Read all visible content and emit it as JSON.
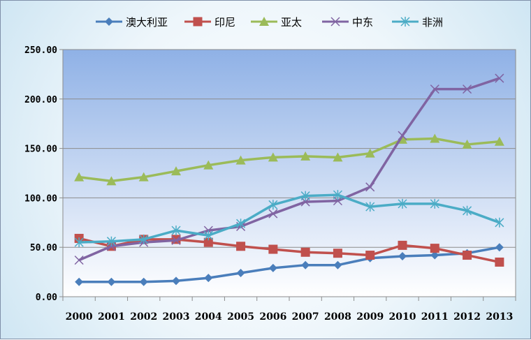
{
  "chart_data": {
    "type": "line",
    "title": "",
    "xlabel": "",
    "ylabel": "",
    "categories": [
      "2000",
      "2001",
      "2002",
      "2003",
      "2004",
      "2005",
      "2006",
      "2007",
      "2008",
      "2009",
      "2010",
      "2011",
      "2012",
      "2013"
    ],
    "ylim": [
      0,
      250
    ],
    "yticks": [
      "0.00",
      "50.00",
      "100.00",
      "150.00",
      "200.00",
      "250.00"
    ],
    "grid": true,
    "legend": "top",
    "series": [
      {
        "name": "澳大利亚",
        "color": "#4a7ebb",
        "marker": "diamond",
        "values": [
          15,
          15,
          15,
          16,
          19,
          24,
          29,
          32,
          32,
          39,
          41,
          42,
          44,
          50
        ]
      },
      {
        "name": "印尼",
        "color": "#c0504d",
        "marker": "square",
        "values": [
          59,
          51,
          58,
          58,
          55,
          51,
          48,
          45,
          44,
          42,
          52,
          49,
          42,
          35
        ]
      },
      {
        "name": "亚太",
        "color": "#9bbb59",
        "marker": "triangle",
        "values": [
          121,
          117,
          121,
          127,
          133,
          138,
          141,
          142,
          141,
          145,
          159,
          160,
          154,
          157
        ]
      },
      {
        "name": "中东",
        "color": "#8064a2",
        "marker": "x",
        "values": [
          37,
          51,
          55,
          57,
          67,
          71,
          84,
          96,
          97,
          111,
          163,
          210,
          210,
          221
        ]
      },
      {
        "name": "非洲",
        "color": "#4bacc6",
        "marker": "star",
        "values": [
          55,
          56,
          58,
          67,
          62,
          74,
          93,
          102,
          103,
          91,
          94,
          94,
          87,
          75
        ]
      }
    ]
  }
}
